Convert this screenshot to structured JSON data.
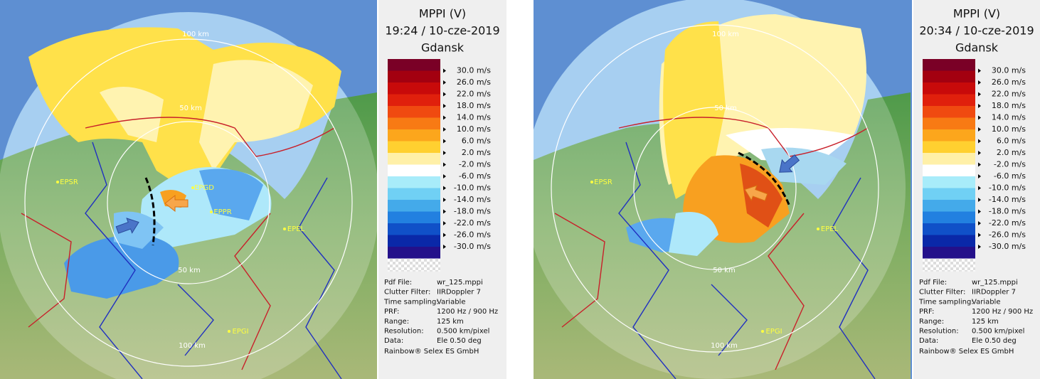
{
  "panels": [
    {
      "title": [
        "MPPI (V)",
        "19:24 / 10-cze-2019",
        "Gdansk"
      ],
      "legend": [
        "30.0 m/s",
        "26.0 m/s",
        "22.0 m/s",
        "18.0 m/s",
        "14.0 m/s",
        "10.0 m/s",
        "6.0 m/s",
        "2.0 m/s",
        "-2.0 m/s",
        "-6.0 m/s",
        "-10.0 m/s",
        "-14.0 m/s",
        "-18.0 m/s",
        "-22.0 m/s",
        "-26.0 m/s",
        "-30.0 m/s"
      ],
      "info": [
        [
          "Pdf File:",
          "wr_125.mppi"
        ],
        [
          "Clutter Filter:",
          "IIRDoppler 7"
        ],
        [
          "Time sampling:",
          "Variable"
        ],
        [
          "PRF:",
          "1200 Hz / 900 Hz"
        ],
        [
          "Range:",
          "125 km"
        ],
        [
          "Resolution:",
          "0.500 km/pixel"
        ],
        [
          "Data:",
          "Ele 0.50 deg"
        ]
      ],
      "footer": "Rainbow® Selex ES GmbH",
      "map_labels": [
        "100 km",
        "50 km",
        "EPSR",
        "EPGD",
        "EPPR",
        "EPEL",
        "50 km",
        "100 km",
        "EPGI"
      ]
    },
    {
      "title": [
        "MPPI (V)",
        "20:34 / 10-cze-2019",
        "Gdansk"
      ],
      "legend": [
        "30.0 m/s",
        "26.0 m/s",
        "22.0 m/s",
        "18.0 m/s",
        "14.0 m/s",
        "10.0 m/s",
        "6.0 m/s",
        "2.0 m/s",
        "-2.0 m/s",
        "-6.0 m/s",
        "-10.0 m/s",
        "-14.0 m/s",
        "-18.0 m/s",
        "-22.0 m/s",
        "-26.0 m/s",
        "-30.0 m/s"
      ],
      "info": [
        [
          "Pdf File:",
          "wr_125.mppi"
        ],
        [
          "Clutter Filter:",
          "IIRDoppler 7"
        ],
        [
          "Time sampling:",
          "Variable"
        ],
        [
          "PRF:",
          "1200 Hz / 900 Hz"
        ],
        [
          "Range:",
          "125 km"
        ],
        [
          "Resolution:",
          "0.500 km/pixel"
        ],
        [
          "Data:",
          "Ele 0.50 deg"
        ]
      ],
      "footer": "Rainbow® Selex ES GmbH",
      "map_labels": [
        "100 km",
        "50 km",
        "EPSR",
        "EPEL",
        "50 km",
        "100 km",
        "EPGI"
      ]
    }
  ]
}
